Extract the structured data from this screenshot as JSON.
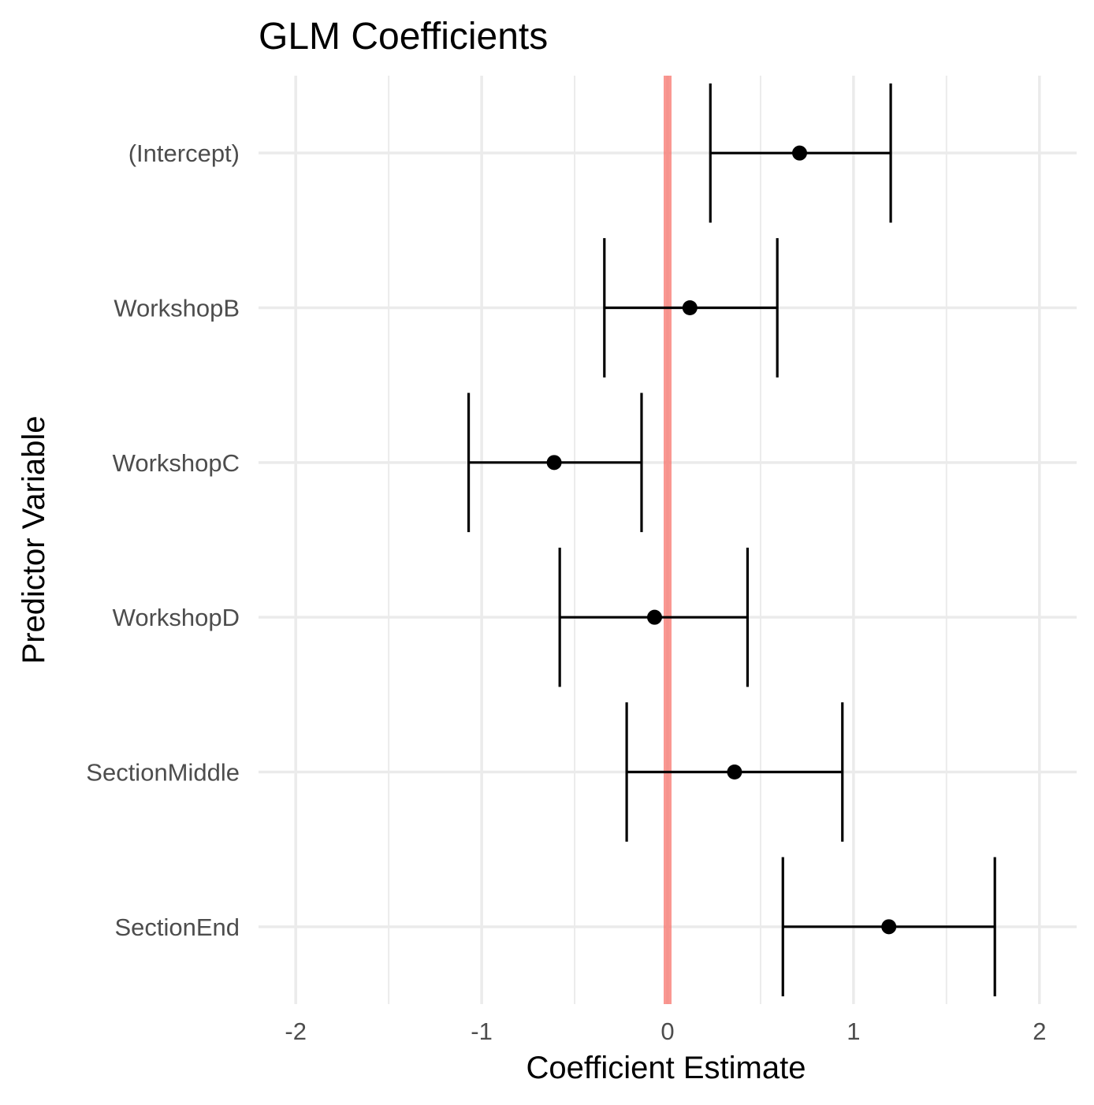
{
  "chart_data": {
    "type": "scatter",
    "title": "GLM Coefficients",
    "xlabel": "Coefficient Estimate",
    "ylabel": "Predictor Variable",
    "xlim": [
      -2.2,
      2.2
    ],
    "xticks": [
      -2,
      -1,
      0,
      1,
      2
    ],
    "xtick_labels": [
      "-2",
      "-1",
      "0",
      "1",
      "2"
    ],
    "grid": true,
    "reference_line": {
      "x": 0,
      "color": "#f8766d"
    },
    "categories": [
      "(Intercept)",
      "WorkshopB",
      "WorkshopC",
      "WorkshopD",
      "SectionMiddle",
      "SectionEnd"
    ],
    "estimates": [
      0.71,
      0.12,
      -0.61,
      -0.07,
      0.36,
      1.19
    ],
    "ci_low": [
      0.23,
      -0.34,
      -1.07,
      -0.58,
      -0.22,
      0.62
    ],
    "ci_high": [
      1.2,
      0.59,
      -0.14,
      0.43,
      0.94,
      1.76
    ],
    "colors": {
      "point": "#000000",
      "errorbar": "#000000",
      "grid": "#ebebeb"
    }
  }
}
